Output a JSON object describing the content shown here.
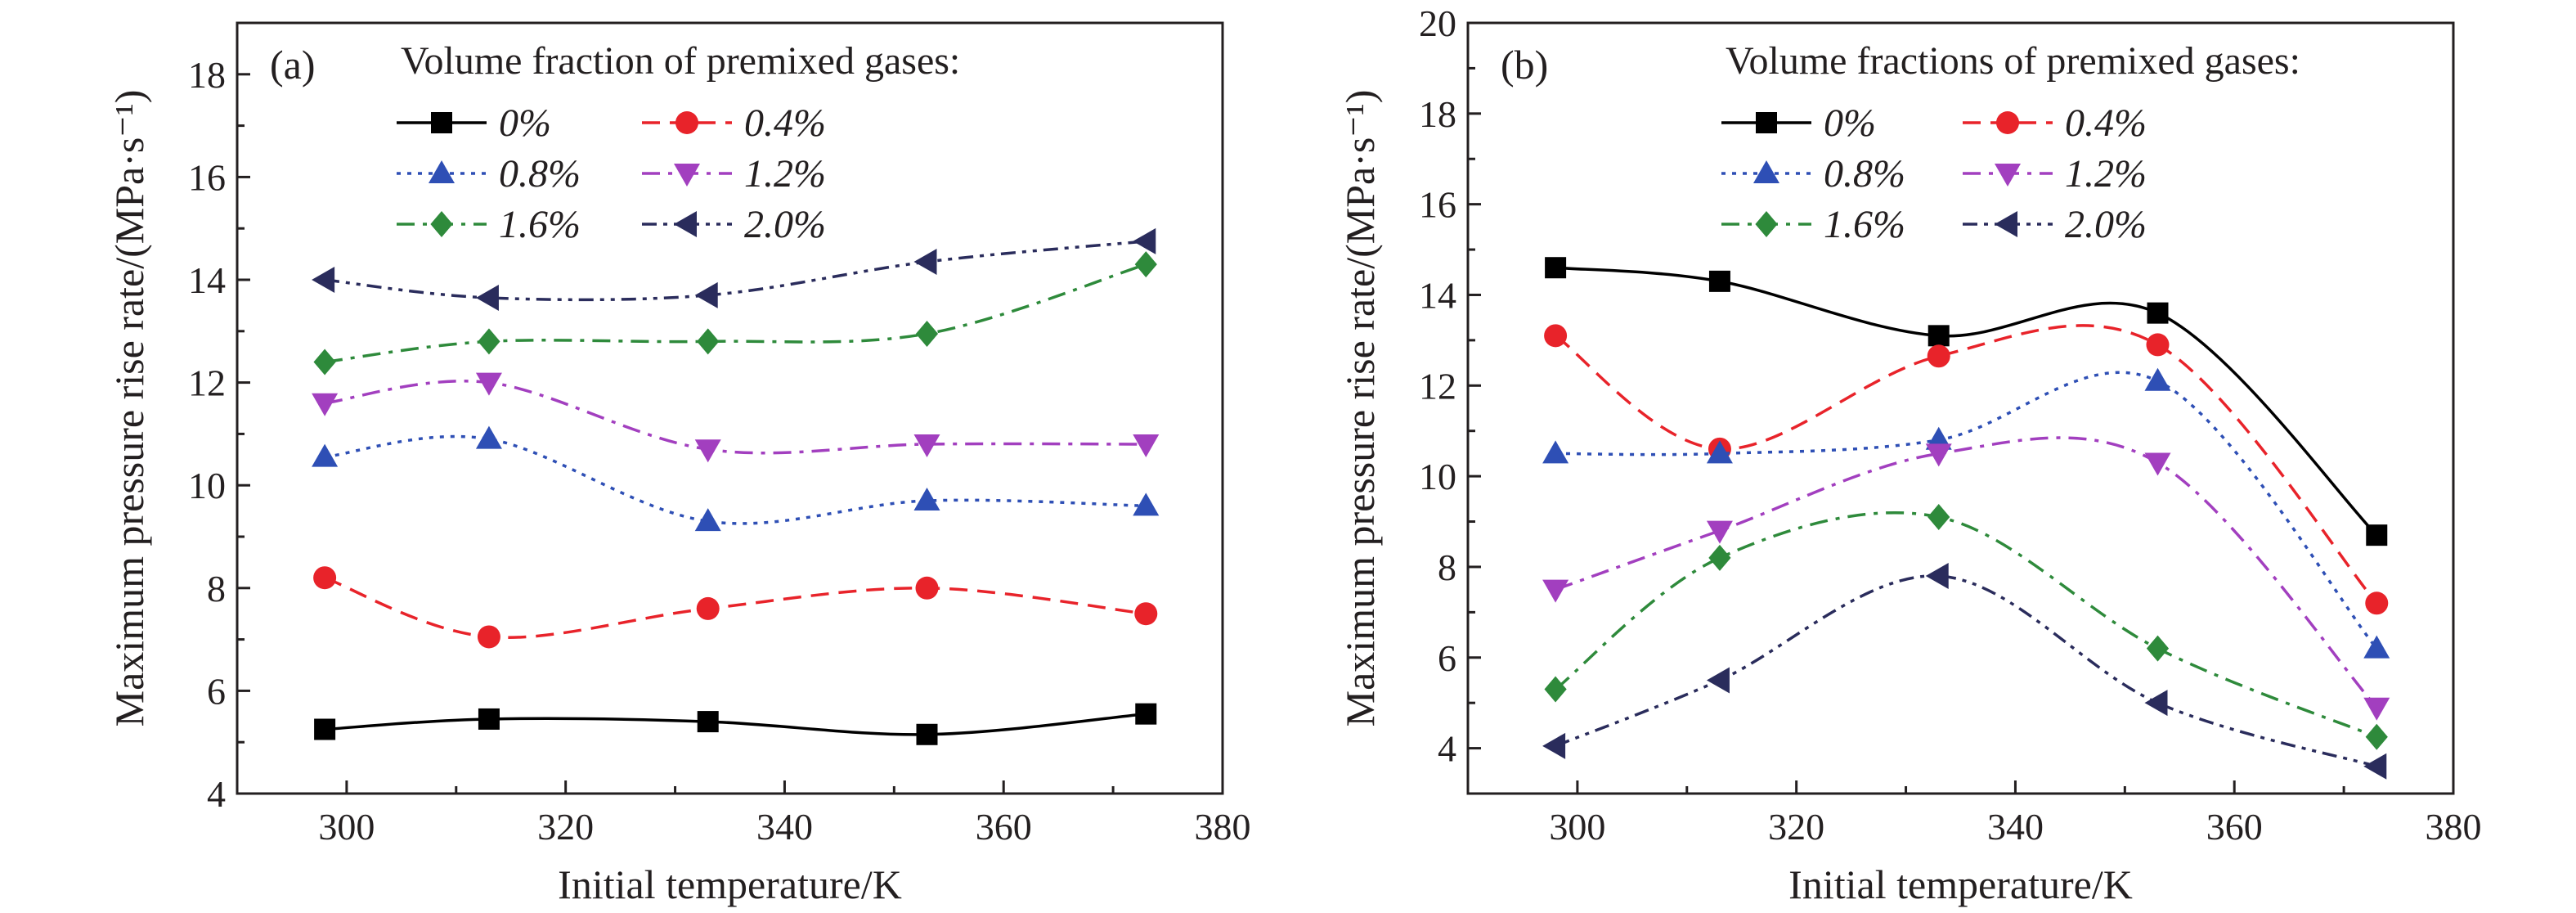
{
  "chart_data": [
    {
      "type": "line",
      "panel_label": "(a)",
      "xlabel": "Initial temperature/K",
      "ylabel": "Maximum pressure rise rate/(MPa·s⁻¹)",
      "xlim": [
        290,
        380
      ],
      "ylim": [
        4,
        19
      ],
      "x_ticks": [
        300,
        320,
        340,
        360,
        380
      ],
      "y_ticks": [
        4,
        6,
        8,
        10,
        12,
        14,
        16,
        18
      ],
      "legend_title": "Volume fraction of premixed gases:",
      "legend_placement": "top",
      "grid": false,
      "x": [
        298,
        313,
        333,
        353,
        373
      ],
      "series": [
        {
          "name": "0%",
          "color": "#000000",
          "marker": "square",
          "dash": "solid",
          "values": [
            5.25,
            5.45,
            5.4,
            5.15,
            5.55
          ]
        },
        {
          "name": "0.4%",
          "color": "#e8232a",
          "marker": "circle",
          "dash": "dash",
          "values": [
            8.2,
            7.05,
            7.6,
            8.0,
            7.5
          ]
        },
        {
          "name": "0.8%",
          "color": "#2e4fb5",
          "marker": "triangle-up",
          "dash": "dot",
          "values": [
            10.55,
            10.9,
            9.3,
            9.7,
            9.6
          ]
        },
        {
          "name": "1.2%",
          "color": "#a23fbf",
          "marker": "triangle-down",
          "dash": "dashdot",
          "values": [
            11.6,
            12.0,
            10.7,
            10.8,
            10.8
          ]
        },
        {
          "name": "1.6%",
          "color": "#2e8a3b",
          "marker": "diamond",
          "dash": "dashdot",
          "values": [
            12.4,
            12.8,
            12.8,
            12.95,
            14.3
          ]
        },
        {
          "name": "2.0%",
          "color": "#2a2c5c",
          "marker": "triangle-left",
          "dash": "dashdotdot",
          "values": [
            14.0,
            13.65,
            13.7,
            14.35,
            14.75
          ]
        }
      ]
    },
    {
      "type": "line",
      "panel_label": "(b)",
      "xlabel": "Initial temperature/K",
      "ylabel": "Maximum pressure rise rate/(MPa·s⁻¹)",
      "xlim": [
        290,
        380
      ],
      "ylim": [
        3,
        20
      ],
      "x_ticks": [
        300,
        320,
        340,
        360,
        380
      ],
      "y_ticks": [
        4,
        6,
        8,
        10,
        12,
        14,
        16,
        18,
        20
      ],
      "legend_title": "Volume fractions of premixed gases:",
      "legend_placement": "top",
      "grid": false,
      "x": [
        298,
        313,
        333,
        353,
        373
      ],
      "series": [
        {
          "name": "0%",
          "color": "#000000",
          "marker": "square",
          "dash": "solid",
          "values": [
            14.6,
            14.3,
            13.1,
            13.6,
            8.7
          ]
        },
        {
          "name": "0.4%",
          "color": "#e8232a",
          "marker": "circle",
          "dash": "dash",
          "values": [
            13.1,
            10.6,
            12.65,
            12.9,
            7.2
          ]
        },
        {
          "name": "0.8%",
          "color": "#2e4fb5",
          "marker": "triangle-up",
          "dash": "dot",
          "values": [
            10.5,
            10.5,
            10.8,
            12.1,
            6.2
          ]
        },
        {
          "name": "1.2%",
          "color": "#a23fbf",
          "marker": "triangle-down",
          "dash": "dashdot",
          "values": [
            7.5,
            8.8,
            10.5,
            10.3,
            4.9
          ]
        },
        {
          "name": "1.6%",
          "color": "#2e8a3b",
          "marker": "diamond",
          "dash": "dashdot",
          "values": [
            5.3,
            8.2,
            9.1,
            6.2,
            4.25
          ]
        },
        {
          "name": "2.0%",
          "color": "#2a2c5c",
          "marker": "triangle-left",
          "dash": "dashdotdot",
          "values": [
            4.05,
            5.5,
            7.8,
            5.0,
            3.6
          ]
        }
      ]
    }
  ]
}
